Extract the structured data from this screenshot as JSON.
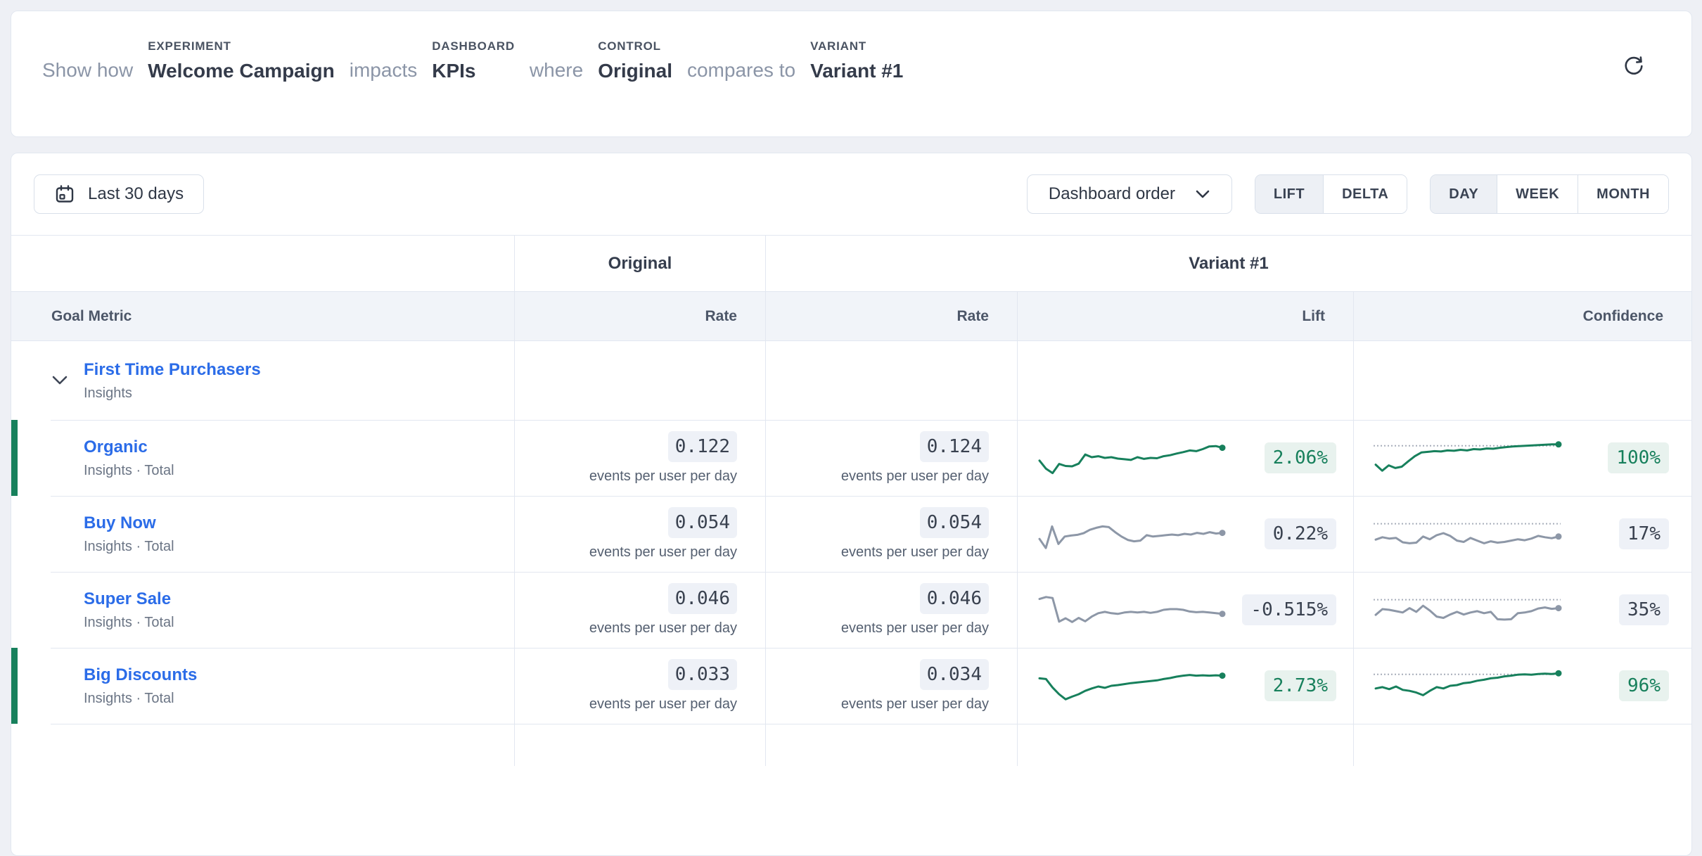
{
  "theme": {
    "page_bg": "#eef0f5",
    "accent_green": "#17805c",
    "line_green": "#17805c",
    "line_gray": "#8d97a7",
    "green_badge_bg": "#e8f2ee",
    "gray_badge_bg": "#eef1f7",
    "link_blue": "#2b6ce8",
    "threshold_color": "#a7aeba"
  },
  "header": {
    "segments": [
      {
        "text": "Show how"
      },
      {
        "label": "EXPERIMENT",
        "value": "Welcome Campaign"
      },
      {
        "text": "impacts"
      },
      {
        "label": "DASHBOARD",
        "value": "KPIs"
      },
      {
        "text": "where"
      },
      {
        "label": "CONTROL",
        "value": "Original"
      },
      {
        "text": "compares to"
      },
      {
        "label": "VARIANT",
        "value": "Variant #1"
      }
    ],
    "refresh_icon": "refresh-icon"
  },
  "toolbar": {
    "date_range_label": "Last 30 days",
    "order_dropdown_label": "Dashboard order",
    "mode_toggle": {
      "options": [
        "LIFT",
        "DELTA"
      ],
      "selected": "LIFT"
    },
    "granularity_toggle": {
      "options": [
        "DAY",
        "WEEK",
        "MONTH"
      ],
      "selected": "DAY"
    }
  },
  "table": {
    "group_headers": {
      "control": "Original",
      "variant": "Variant #1"
    },
    "columns": {
      "goal_metric": "Goal Metric",
      "control_rate": "Rate",
      "variant_rate": "Rate",
      "lift": "Lift",
      "confidence": "Confidence"
    },
    "unit": "events per user per day",
    "group_row": {
      "name": "First Time Purchasers",
      "source": "Insights"
    },
    "rows": [
      {
        "name": "Organic",
        "source": "Insights · Total",
        "original_rate": "0.122",
        "variant_rate": "0.124",
        "lift": "2.06%",
        "confidence": "100%",
        "significant": true,
        "conf_threshold": 0.86,
        "lift_spark": [
          0.42,
          0.18,
          0.05,
          0.32,
          0.26,
          0.25,
          0.33,
          0.6,
          0.52,
          0.55,
          0.5,
          0.52,
          0.48,
          0.46,
          0.44,
          0.52,
          0.47,
          0.5,
          0.49,
          0.55,
          0.58,
          0.63,
          0.67,
          0.72,
          0.7,
          0.76,
          0.84,
          0.85,
          0.8
        ],
        "conf_spark": [
          0.3,
          0.12,
          0.28,
          0.2,
          0.24,
          0.4,
          0.55,
          0.66,
          0.68,
          0.7,
          0.69,
          0.72,
          0.71,
          0.74,
          0.72,
          0.76,
          0.75,
          0.78,
          0.77,
          0.8,
          0.82,
          0.84,
          0.85,
          0.86,
          0.87,
          0.88,
          0.89,
          0.9,
          0.9
        ]
      },
      {
        "name": "Buy Now",
        "source": "Insights · Total",
        "original_rate": "0.054",
        "variant_rate": "0.054",
        "lift": "0.22%",
        "confidence": "17%",
        "significant": false,
        "conf_threshold": 0.8,
        "lift_spark": [
          0.35,
          0.08,
          0.72,
          0.2,
          0.42,
          0.45,
          0.47,
          0.52,
          0.62,
          0.68,
          0.72,
          0.7,
          0.55,
          0.42,
          0.32,
          0.28,
          0.3,
          0.46,
          0.42,
          0.44,
          0.46,
          0.48,
          0.46,
          0.5,
          0.48,
          0.53,
          0.5,
          0.55,
          0.51,
          0.53
        ],
        "conf_spark": [
          0.33,
          0.4,
          0.36,
          0.38,
          0.25,
          0.22,
          0.24,
          0.42,
          0.34,
          0.46,
          0.52,
          0.44,
          0.3,
          0.26,
          0.38,
          0.3,
          0.22,
          0.28,
          0.24,
          0.26,
          0.3,
          0.34,
          0.31,
          0.36,
          0.44,
          0.4,
          0.37,
          0.42
        ]
      },
      {
        "name": "Super Sale",
        "source": "Insights · Total",
        "original_rate": "0.046",
        "variant_rate": "0.046",
        "lift": "-0.515%",
        "confidence": "35%",
        "significant": false,
        "conf_threshold": 0.8,
        "lift_spark": [
          0.82,
          0.88,
          0.85,
          0.15,
          0.25,
          0.14,
          0.26,
          0.16,
          0.3,
          0.4,
          0.44,
          0.4,
          0.38,
          0.42,
          0.44,
          0.42,
          0.44,
          0.41,
          0.44,
          0.5,
          0.52,
          0.52,
          0.5,
          0.45,
          0.43,
          0.44,
          0.42,
          0.4,
          0.38
        ],
        "conf_spark": [
          0.35,
          0.52,
          0.5,
          0.46,
          0.42,
          0.55,
          0.44,
          0.62,
          0.48,
          0.3,
          0.26,
          0.36,
          0.44,
          0.36,
          0.42,
          0.46,
          0.4,
          0.44,
          0.22,
          0.21,
          0.22,
          0.4,
          0.42,
          0.46,
          0.54,
          0.57,
          0.53,
          0.55
        ]
      },
      {
        "name": "Big Discounts",
        "source": "Insights · Total",
        "original_rate": "0.033",
        "variant_rate": "0.034",
        "lift": "2.73%",
        "confidence": "96%",
        "significant": true,
        "conf_threshold": 0.84,
        "lift_spark": [
          0.72,
          0.7,
          0.45,
          0.25,
          0.1,
          0.18,
          0.25,
          0.35,
          0.42,
          0.48,
          0.44,
          0.5,
          0.52,
          0.55,
          0.58,
          0.6,
          0.62,
          0.64,
          0.66,
          0.7,
          0.73,
          0.77,
          0.8,
          0.82,
          0.8,
          0.81,
          0.8,
          0.81,
          0.8
        ],
        "conf_spark": [
          0.42,
          0.46,
          0.4,
          0.48,
          0.38,
          0.35,
          0.3,
          0.22,
          0.35,
          0.46,
          0.42,
          0.5,
          0.52,
          0.58,
          0.6,
          0.65,
          0.68,
          0.72,
          0.74,
          0.78,
          0.8,
          0.83,
          0.84,
          0.83,
          0.85,
          0.86,
          0.85,
          0.87
        ]
      }
    ]
  }
}
